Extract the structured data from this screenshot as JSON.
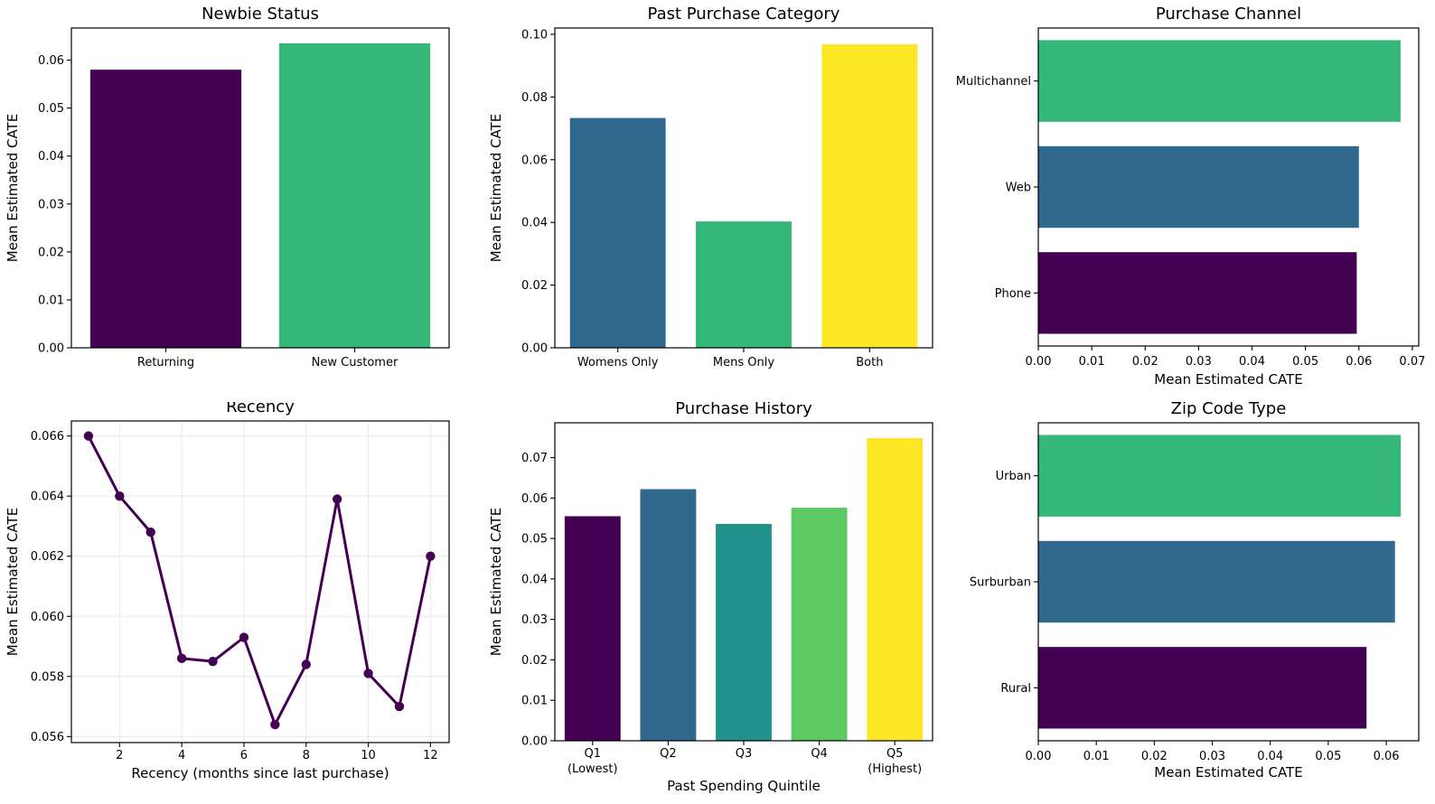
{
  "figure": {
    "background": "#ffffff",
    "shared_value_label": "Mean Estimated CATE"
  },
  "palette": {
    "viridis_purple": "#440154",
    "viridis_blue": "#31688e",
    "viridis_teal": "#21918c",
    "viridis_green": "#35b779",
    "viridis_light_green": "#5ec962",
    "viridis_yellow": "#fde725"
  },
  "chart_data": [
    {
      "id": "newbie-status",
      "type": "bar",
      "title": "Newbie Status",
      "ylabel": "Mean Estimated CATE",
      "xlabel": "",
      "categories": [
        "Returning",
        "New Customer"
      ],
      "values": [
        0.058,
        0.0635
      ],
      "colors": [
        "#440154",
        "#35b779"
      ],
      "ylim": [
        0,
        0.0667
      ],
      "yticks": [
        0,
        0.01,
        0.02,
        0.03,
        0.04,
        0.05,
        0.06
      ],
      "ytick_labels": [
        "0.00",
        "0.01",
        "0.02",
        "0.03",
        "0.04",
        "0.05",
        "0.06"
      ],
      "bar_width_frac": 0.8,
      "grid": false
    },
    {
      "id": "past-purchase-category",
      "type": "bar",
      "title": "Past Purchase Category",
      "ylabel": "Mean Estimated CATE",
      "xlabel": "",
      "categories": [
        "Womens Only",
        "Mens Only",
        "Both"
      ],
      "values": [
        0.0733,
        0.0403,
        0.0968
      ],
      "colors": [
        "#31688e",
        "#35b779",
        "#fde725"
      ],
      "ylim": [
        0,
        0.102
      ],
      "yticks": [
        0,
        0.02,
        0.04,
        0.06,
        0.08,
        0.1
      ],
      "ytick_labels": [
        "0.00",
        "0.02",
        "0.04",
        "0.06",
        "0.08",
        "0.10"
      ],
      "bar_width_frac": 0.76,
      "grid": false
    },
    {
      "id": "purchase-channel",
      "type": "barh",
      "title": "Purchase Channel",
      "ylabel": "",
      "xlabel": "Mean Estimated CATE",
      "categories": [
        "Multichannel",
        "Web",
        "Phone"
      ],
      "values": [
        0.0678,
        0.06,
        0.0596
      ],
      "colors": [
        "#35b779",
        "#31688e",
        "#440154"
      ],
      "xlim": [
        0,
        0.0712
      ],
      "xticks": [
        0,
        0.01,
        0.02,
        0.03,
        0.04,
        0.05,
        0.06,
        0.07
      ],
      "xtick_labels": [
        "0.00",
        "0.01",
        "0.02",
        "0.03",
        "0.04",
        "0.05",
        "0.06",
        "0.07"
      ],
      "bar_width_frac": 0.77,
      "grid": false
    },
    {
      "id": "recency",
      "type": "line",
      "title": "Recency",
      "ylabel": "Mean Estimated CATE",
      "xlabel": "Recency (months since last purchase)",
      "x": [
        1,
        2,
        3,
        4,
        5,
        6,
        7,
        8,
        9,
        10,
        11,
        12
      ],
      "y": [
        0.066,
        0.064,
        0.0628,
        0.0586,
        0.0585,
        0.0593,
        0.0564,
        0.0584,
        0.0639,
        0.0581,
        0.057,
        0.062
      ],
      "line_color": "#440154",
      "line_width": 3,
      "marker_radius": 5.2,
      "xlim": [
        0.45,
        12.6
      ],
      "ylim": [
        0.0558,
        0.0665
      ],
      "xticks": [
        2,
        4,
        6,
        8,
        10,
        12
      ],
      "xtick_labels": [
        "2",
        "4",
        "6",
        "8",
        "10",
        "12"
      ],
      "yticks": [
        0.056,
        0.058,
        0.06,
        0.062,
        0.064,
        0.066
      ],
      "ytick_labels": [
        "0.056",
        "0.058",
        "0.060",
        "0.062",
        "0.064",
        "0.066"
      ],
      "grid": true,
      "grid_color": "#e8e8e8"
    },
    {
      "id": "purchase-history",
      "type": "bar",
      "title": "Purchase History",
      "ylabel": "Mean Estimated CATE",
      "xlabel": "Past Spending Quintile",
      "categories": [
        "Q1\n(Lowest)",
        "Q2",
        "Q3",
        "Q4",
        "Q5\n(Highest)"
      ],
      "values": [
        0.0555,
        0.0622,
        0.0536,
        0.0576,
        0.0748
      ],
      "colors": [
        "#440154",
        "#31688e",
        "#21918c",
        "#5ec962",
        "#fde725"
      ],
      "ylim": [
        0,
        0.0786
      ],
      "yticks": [
        0,
        0.01,
        0.02,
        0.03,
        0.04,
        0.05,
        0.06,
        0.07
      ],
      "ytick_labels": [
        "0.00",
        "0.01",
        "0.02",
        "0.03",
        "0.04",
        "0.05",
        "0.06",
        "0.07"
      ],
      "bar_width_frac": 0.74,
      "grid": false
    },
    {
      "id": "zip-code-type",
      "type": "barh",
      "title": "Zip Code Type",
      "ylabel": "",
      "xlabel": "Mean Estimated CATE",
      "categories": [
        "Urban",
        "Surburban",
        "Rural"
      ],
      "values": [
        0.0625,
        0.0615,
        0.0566
      ],
      "colors": [
        "#35b779",
        "#31688e",
        "#440154"
      ],
      "xlim": [
        0,
        0.0656
      ],
      "xticks": [
        0,
        0.01,
        0.02,
        0.03,
        0.04,
        0.05,
        0.06
      ],
      "xtick_labels": [
        "0.00",
        "0.01",
        "0.02",
        "0.03",
        "0.04",
        "0.05",
        "0.06"
      ],
      "bar_width_frac": 0.77,
      "grid": false
    }
  ]
}
